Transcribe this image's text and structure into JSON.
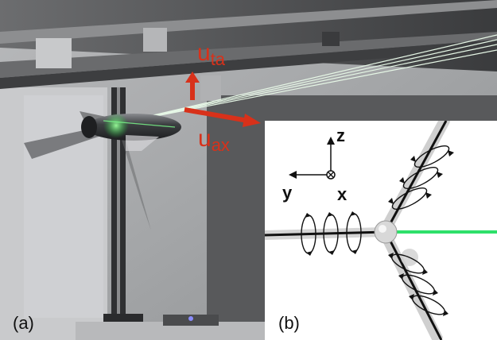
{
  "panels": {
    "a": {
      "label": "(a)",
      "arrow_label_ta": {
        "base": "u",
        "sub": "ta"
      },
      "arrow_label_ax": {
        "base": "u",
        "sub": "ax"
      }
    },
    "b": {
      "label": "(b)",
      "axis_z": "z",
      "axis_y": "y",
      "axis_x": "x"
    }
  },
  "colors": {
    "arrow_red": "#d8311a",
    "laser_green": "#22e05a",
    "beam_green": "#2ee06a"
  }
}
